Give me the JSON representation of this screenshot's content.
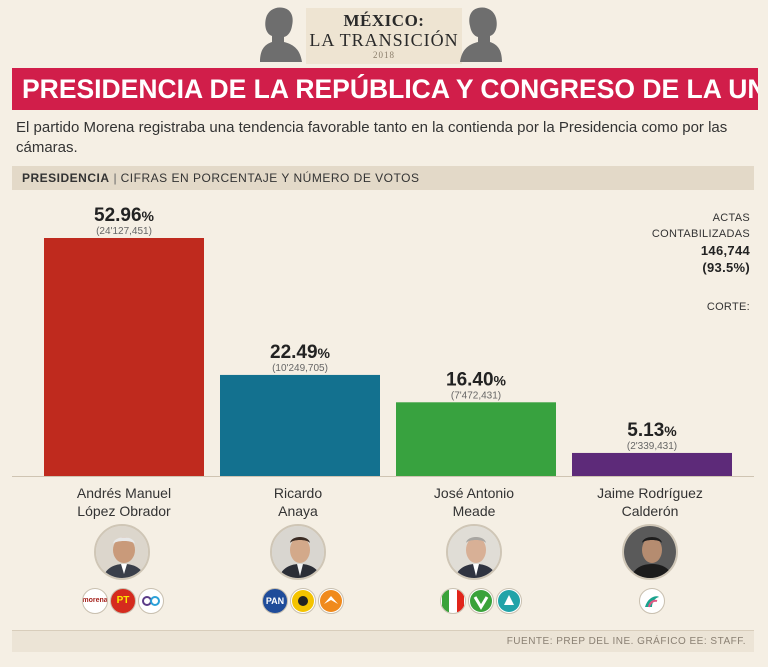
{
  "header": {
    "kicker_line1": "MÉXICO:",
    "kicker_line2": "LA TRANSICIÓN",
    "kicker_year": "2018",
    "banner_title": "PRESIDENCIA DE LA REPÚBLICA Y CONGRESO DE LA UNIÓN",
    "banner_color": "#d11e4a"
  },
  "intro": "El partido Morena registraba una tendencia favorable tanto en la contienda por la Presidencia como por las cámaras.",
  "section": {
    "title": "PRESIDENCIA",
    "separator": "|",
    "subtitle": "CIFRAS EN PORCENTAJE Y NÚMERO DE VOTOS"
  },
  "actas": {
    "label_line1": "ACTAS",
    "label_line2": "CONTABILIZADAS",
    "count": "146,744",
    "percent": "(93.5%)",
    "corte_label": "CORTE:"
  },
  "chart_data": {
    "type": "bar",
    "title": "PRESIDENCIA",
    "subtitle": "CIFRAS EN PORCENTAJE Y NÚMERO DE VOTOS",
    "categories": [
      "Andrés Manuel López Obrador",
      "Ricardo Anaya",
      "José Antonio Meade",
      "Jaime Rodríguez Calderón"
    ],
    "values": [
      52.96,
      22.49,
      16.4,
      5.13
    ],
    "value_labels": [
      "52.96",
      "22.49",
      "16.40",
      "5.13"
    ],
    "percent_sign": "%",
    "votes": [
      "(24'127,451)",
      "(10'249,705)",
      "(7'472,431)",
      "(2'339,431)"
    ],
    "colors": [
      "#bf2a1e",
      "#13718f",
      "#38a23f",
      "#5d2a79"
    ],
    "ylim": [
      0,
      52.96
    ],
    "grid": false,
    "legend": "none"
  },
  "candidates": [
    {
      "name_line1": "Andrés Manuel",
      "name_line2": "López Obrador",
      "parties": [
        "morena",
        "PT",
        "PES"
      ]
    },
    {
      "name_line1": "Ricardo",
      "name_line2": "Anaya",
      "parties": [
        "PAN",
        "PRD",
        "MC"
      ]
    },
    {
      "name_line1": "José Antonio",
      "name_line2": "Meade",
      "parties": [
        "PRI",
        "PVEM",
        "PANAL"
      ]
    },
    {
      "name_line1": "Jaime Rodríguez",
      "name_line2": "Calderón",
      "parties": [
        "IND"
      ]
    }
  ],
  "party_colors": {
    "morena": "#a5221d",
    "PT": "#d52b1e",
    "PES": "#5b3c88",
    "PAN": "#1f4c9a",
    "PRD": "#f4c300",
    "MC": "#f08a1c",
    "PRI": "#e1251b",
    "PVEM": "#3aa23a",
    "PANAL": "#21a3a8",
    "IND": "#1aa38e"
  },
  "footer": "FUENTE: PREP DEL INE.  GRÁFICO EE: STAFF."
}
